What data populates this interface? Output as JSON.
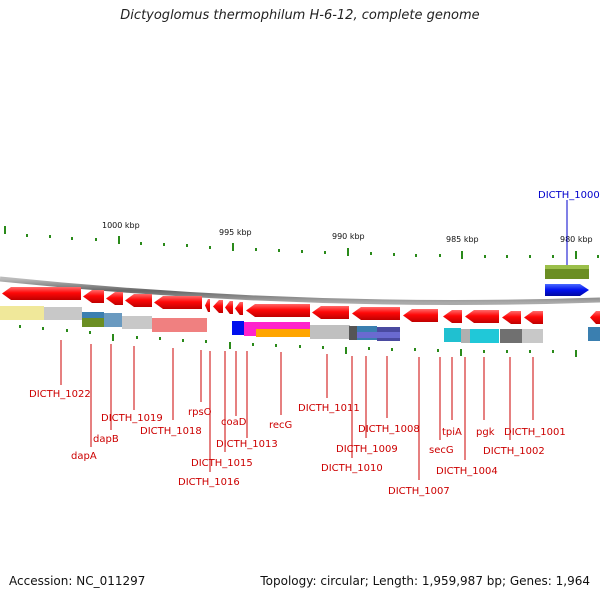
{
  "title": "Dictyoglomus thermophilum H-6-12, complete genome",
  "footer": {
    "accession_text": "Accession: NC_011297",
    "summary_text": "Topology: circular; Length: 1,959,987 bp; Genes: 1,964"
  },
  "colors": {
    "gene_label": "#cc0000",
    "highlight_label": "#0000cc",
    "arrow_red": "#ff1010",
    "tick_green": "#2a8a1a",
    "backbone": "#888888"
  },
  "scale": {
    "ticks_kbp": [
      "1000 kbp",
      "995 kbp",
      "990 kbp",
      "985 kbp",
      "980 kbp"
    ]
  },
  "highlight": {
    "label": "DICTH_1000"
  },
  "genes": [
    "DICTH_1022",
    "dapA",
    "dapB",
    "DICTH_1019",
    "DICTH_1018",
    "rpsO",
    "DICTH_1016",
    "DICTH_1015",
    "coaD",
    "DICTH_1013",
    "recG",
    "DICTH_1011",
    "DICTH_1010",
    "DICTH_1009",
    "DICTH_1008",
    "DICTH_1007",
    "secG",
    "tpiA",
    "DICTH_1004",
    "pgk",
    "DICTH_1002",
    "DICTH_1001"
  ]
}
